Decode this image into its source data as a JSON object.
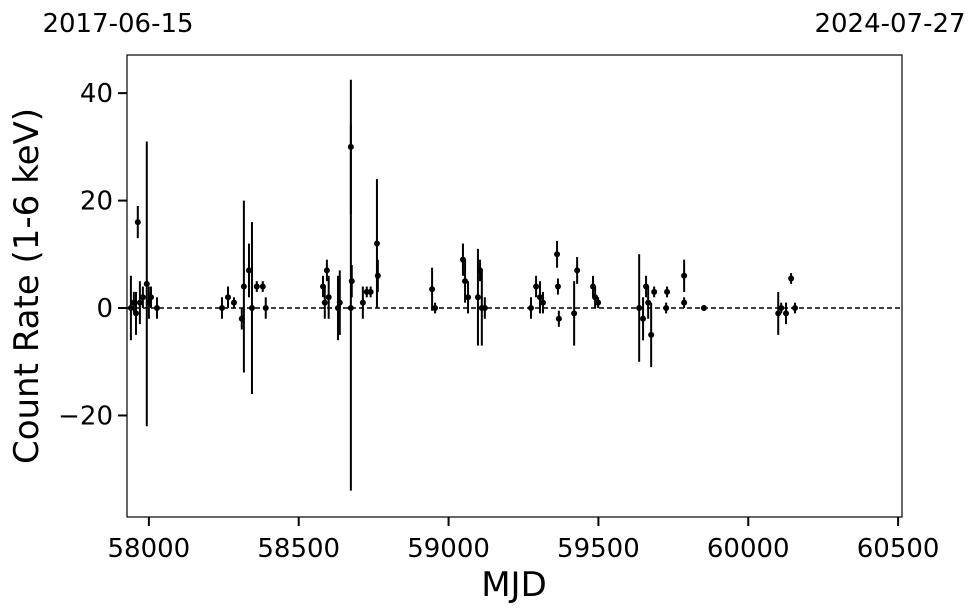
{
  "chart_data": {
    "type": "errorbar",
    "top_labels": [
      "2017-06-15",
      "2024-07-27"
    ],
    "xlabel": "MJD",
    "ylabel": "Count Rate (1-6 keV)",
    "xlim": [
      57927,
      60513
    ],
    "ylim": [
      -38.9,
      47.1
    ],
    "xticks": [
      58000,
      58500,
      59000,
      59500,
      60000,
      60500
    ],
    "yticks": [
      {
        "value": -20,
        "label": "−20"
      },
      0,
      20,
      40
    ],
    "hline": 0,
    "hline_style": "dashed",
    "color": "#000000",
    "x": [
      57940,
      57950,
      57957,
      57963,
      57970,
      57980,
      57993,
      58000,
      58007,
      58027,
      58244,
      58264,
      58284,
      58310,
      58317,
      58334,
      58344,
      58360,
      58380,
      58390,
      58581,
      58587,
      58594,
      58600,
      58631,
      58637,
      58674,
      58674,
      58677,
      58714,
      58727,
      58740,
      58761,
      58764,
      58945,
      58955,
      59048,
      59055,
      59065,
      59098,
      59105,
      59111,
      59121,
      59275,
      59292,
      59305,
      59315,
      59362,
      59365,
      59368,
      59419,
      59429,
      59482,
      59489,
      59499,
      59636,
      59649,
      59659,
      59666,
      59676,
      59686,
      59726,
      59729,
      59786,
      59786,
      59852,
      60100,
      60110,
      60126,
      60143,
      60156
    ],
    "values": [
      0,
      1,
      -1,
      16,
      1,
      2,
      4.5,
      1,
      2,
      0,
      0,
      2,
      1,
      -2,
      4,
      7,
      0,
      4,
      4,
      0,
      4,
      1,
      7,
      2,
      0,
      1,
      30,
      0,
      5,
      1,
      3,
      3,
      12,
      6,
      3.5,
      0,
      9,
      5,
      2,
      2,
      7,
      0,
      0,
      0,
      4,
      2,
      1,
      10,
      4,
      -2,
      -1,
      7,
      4,
      2,
      1,
      0,
      -2,
      4,
      1,
      -5,
      3,
      0,
      3,
      6,
      1,
      0,
      -1,
      0,
      -1,
      5.5,
      0
    ],
    "errors": [
      6,
      2,
      4,
      3,
      4,
      2,
      26.5,
      3,
      2,
      2,
      2,
      2,
      1,
      2,
      16,
      5,
      16,
      1,
      1,
      2,
      2,
      3,
      2,
      4,
      6,
      6,
      12.5,
      34,
      3,
      3,
      1,
      1,
      12,
      3,
      4,
      1,
      3,
      4,
      3,
      9,
      2,
      7,
      2,
      2,
      2,
      3,
      2,
      2.5,
      1.5,
      1.5,
      6,
      2.5,
      2,
      2,
      1,
      10,
      4,
      2,
      3,
      6,
      1,
      1,
      1,
      3,
      1,
      0.5,
      4,
      1,
      2,
      1,
      1
    ]
  }
}
